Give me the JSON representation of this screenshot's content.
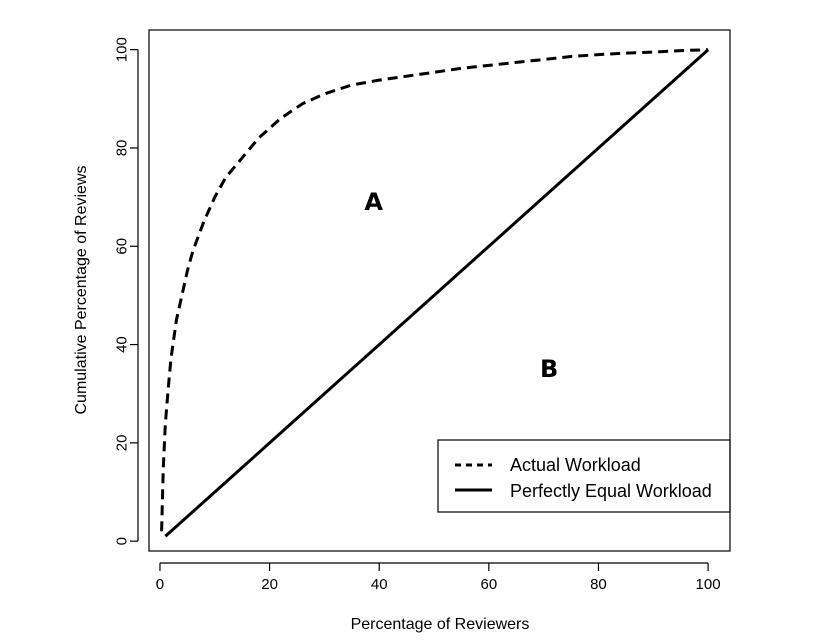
{
  "chart_data": {
    "type": "line",
    "title": "",
    "xlabel": "Percentage of Reviewers",
    "ylabel": "Cumulative Percentage of Reviews",
    "xlim": [
      -2,
      104
    ],
    "ylim": [
      -2,
      104
    ],
    "x_ticks": [
      0,
      20,
      40,
      60,
      80,
      100
    ],
    "y_ticks": [
      0,
      20,
      40,
      60,
      80,
      100
    ],
    "grid": false,
    "legend_position": "bottom-right",
    "series": [
      {
        "name": "Actual Workload",
        "style": "dashed",
        "color": "#000000",
        "x": [
          0.3,
          0.6,
          1,
          1.5,
          2,
          3,
          4,
          5,
          6,
          8,
          10,
          12,
          15,
          18,
          22,
          26,
          30,
          35,
          40,
          45,
          50,
          55,
          60,
          65,
          70,
          75,
          80,
          85,
          90,
          95,
          100
        ],
        "y": [
          2,
          15,
          24,
          31,
          37,
          45,
          50,
          55,
          59,
          65,
          70,
          74,
          78,
          82,
          86,
          89,
          91,
          92.8,
          93.8,
          94.6,
          95.4,
          96.2,
          96.8,
          97.4,
          98,
          98.6,
          99,
          99.3,
          99.5,
          99.8,
          100
        ]
      },
      {
        "name": "Perfectly Equal Workload",
        "style": "solid",
        "color": "#000000",
        "x": [
          1,
          100
        ],
        "y": [
          1,
          100
        ]
      }
    ],
    "annotations": [
      {
        "text": "A",
        "x": 39,
        "y": 69
      },
      {
        "text": "B",
        "x": 71,
        "y": 35
      }
    ]
  }
}
